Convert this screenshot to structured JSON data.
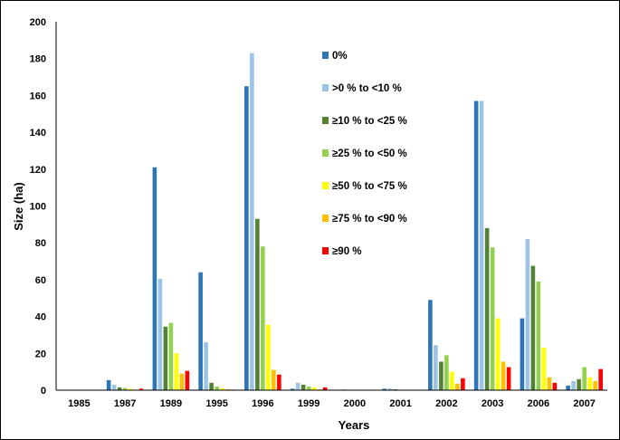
{
  "chart_data": {
    "type": "bar",
    "title": "",
    "xlabel": "Years",
    "ylabel": "Size (ha)",
    "ylim": [
      0,
      200
    ],
    "yticks": [
      0,
      20,
      40,
      60,
      80,
      100,
      120,
      140,
      160,
      180,
      200
    ],
    "grid": false,
    "legend_position": "top-center",
    "categories": [
      "1985",
      "1987",
      "1989",
      "1995",
      "1996",
      "1999",
      "2000",
      "2001",
      "2002",
      "2003",
      "2006",
      "2007"
    ],
    "series": [
      {
        "name": "0%",
        "color": "#2e75b6",
        "values": [
          0,
          5.5,
          121,
          64,
          165,
          0.8,
          0,
          0.8,
          49,
          157,
          39,
          2.5
        ]
      },
      {
        "name": ">0 % to <10 %",
        "color": "#9dc3e6",
        "values": [
          0,
          3,
          60.5,
          26,
          183,
          4,
          0.5,
          1,
          24.5,
          157,
          82,
          5
        ]
      },
      {
        "name": "≥10 % to <25 %",
        "color": "#548235",
        "values": [
          0,
          1.5,
          34.5,
          4,
          93,
          3,
          0,
          0.5,
          15.5,
          88,
          67.5,
          6
        ]
      },
      {
        "name": "≥25 % to <50 %",
        "color": "#92d050",
        "values": [
          0,
          1.2,
          36.5,
          2,
          78,
          2,
          0,
          0.3,
          19,
          77.5,
          59,
          12.5
        ]
      },
      {
        "name": "≥50 % to <75 %",
        "color": "#ffff00",
        "values": [
          0,
          0.8,
          20,
          1,
          35.5,
          1.5,
          0,
          0.2,
          10,
          39,
          23,
          7
        ]
      },
      {
        "name": "≥75 % to <90 %",
        "color": "#ffc000",
        "values": [
          0,
          0.3,
          9,
          0.5,
          11,
          0.5,
          0,
          0,
          3.5,
          15.5,
          7,
          5
        ]
      },
      {
        "name": "≥90 %",
        "color": "#ff0000",
        "values": [
          0,
          0.8,
          10.5,
          0.3,
          8.5,
          1.5,
          0,
          0,
          6.5,
          12.5,
          4,
          11.5
        ]
      }
    ]
  }
}
